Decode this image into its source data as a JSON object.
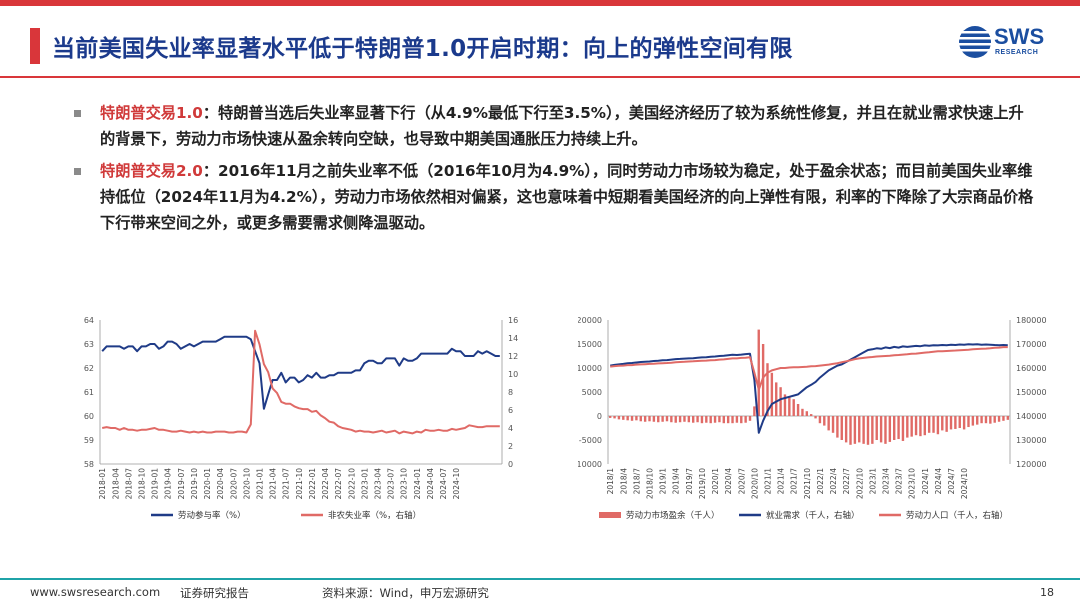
{
  "colors": {
    "brand_red": "#d9363a",
    "title_blue": "#1b3a8c",
    "teal_rule": "#1fa3a8",
    "series_blue": "#1f3b87",
    "series_red": "#e06a66"
  },
  "header": {
    "title": "当前美国失业率显著水平低于特朗普1.0开启时期：向上的弹性空间有限",
    "logo_text": "SWS",
    "logo_sub": "RESEARCH",
    "logo_icon": "sws-globe-icon"
  },
  "bullets": [
    {
      "lead": "特朗普交易1.0",
      "text": "：特朗普当选后失业率显著下行（从4.9%最低下行至3.5%），美国经济经历了较为系统性修复，并且在就业需求快速上升的背景下，劳动力市场快速从盈余转向空缺，也导致中期美国通胀压力持续上升。"
    },
    {
      "lead": "特朗普交易2.0",
      "text": "：2016年11月之前失业率不低（2016年10月为4.9%），同时劳动力市场较为稳定，处于盈余状态；而目前美国失业率维持低位（2024年11月为4.2%），劳动力市场依然相对偏紧，这也意味着中短期看美国经济的向上弹性有限，利率的下降除了大宗商品价格下行带来空间之外，或更多需要需求侧降温驱动。"
    }
  ],
  "footer": {
    "website": "www.swsresearch.com",
    "report_type": "证券研究报告",
    "source": "资料来源：Wind，申万宏源研究",
    "page": "18"
  },
  "chart_data": [
    {
      "type": "line",
      "x_ticks": [
        "2018-01",
        "2018-04",
        "2018-07",
        "2018-10",
        "2019-01",
        "2019-04",
        "2019-07",
        "2019-10",
        "2020-01",
        "2020-04",
        "2020-07",
        "2020-10",
        "2021-01",
        "2021-04",
        "2021-07",
        "2021-10",
        "2022-01",
        "2022-04",
        "2022-07",
        "2022-10",
        "2023-01",
        "2023-04",
        "2023-07",
        "2023-10",
        "2024-01",
        "2024-04",
        "2024-07",
        "2024-10"
      ],
      "ylim": [
        58,
        64
      ],
      "yticks": [
        58,
        59,
        60,
        61,
        62,
        63,
        64
      ],
      "y2lim": [
        0,
        16
      ],
      "y2ticks": [
        0,
        2,
        4,
        6,
        8,
        10,
        12,
        14,
        16
      ],
      "legend_position": "bottom",
      "series": [
        {
          "name": "劳动参与率（%）",
          "axis": "left",
          "color": "#1f3b87",
          "values": [
            62.7,
            62.9,
            62.9,
            62.9,
            62.9,
            62.8,
            62.9,
            62.9,
            62.7,
            62.9,
            62.9,
            63.0,
            63.0,
            62.8,
            62.9,
            63.1,
            63.1,
            63.0,
            62.8,
            62.9,
            63.0,
            62.9,
            63.0,
            63.1,
            63.1,
            63.1,
            63.1,
            63.2,
            63.3,
            63.3,
            63.3,
            63.3,
            63.3,
            63.3,
            63.2,
            62.7,
            62.2,
            60.3,
            60.9,
            61.5,
            61.5,
            61.8,
            61.4,
            61.6,
            61.6,
            61.4,
            61.5,
            61.7,
            61.6,
            61.8,
            61.6,
            61.6,
            61.7,
            61.7,
            61.8,
            61.8,
            61.8,
            61.8,
            61.9,
            61.9,
            62.2,
            62.3,
            62.3,
            62.2,
            62.2,
            62.4,
            62.4,
            62.4,
            62.1,
            62.4,
            62.3,
            62.3,
            62.4,
            62.6,
            62.6,
            62.6,
            62.6,
            62.6,
            62.6,
            62.6,
            62.8,
            62.7,
            62.7,
            62.5,
            62.5,
            62.5,
            62.7,
            62.6,
            62.7,
            62.6,
            62.5,
            62.5
          ]
        },
        {
          "name": "非农失业率（%，右轴）",
          "axis": "right",
          "color": "#e06a66",
          "values": [
            4.0,
            4.1,
            4.0,
            4.0,
            3.8,
            4.0,
            3.8,
            3.8,
            3.7,
            3.8,
            3.8,
            3.9,
            4.0,
            3.8,
            3.8,
            3.7,
            3.6,
            3.6,
            3.7,
            3.6,
            3.5,
            3.6,
            3.5,
            3.6,
            3.5,
            3.5,
            3.6,
            3.6,
            3.6,
            3.5,
            3.5,
            3.6,
            3.6,
            3.5,
            4.4,
            14.8,
            13.3,
            11.1,
            10.2,
            8.4,
            7.9,
            6.9,
            6.7,
            6.7,
            6.4,
            6.2,
            6.1,
            6.1,
            5.8,
            5.9,
            5.4,
            5.1,
            4.7,
            4.6,
            4.2,
            4.0,
            3.9,
            3.8,
            3.6,
            3.7,
            3.6,
            3.6,
            3.5,
            3.6,
            3.7,
            3.5,
            3.6,
            3.7,
            3.4,
            3.6,
            3.5,
            3.4,
            3.6,
            3.5,
            3.8,
            3.7,
            3.7,
            3.8,
            3.7,
            3.7,
            3.9,
            3.8,
            3.9,
            4.0,
            4.3,
            4.2,
            4.1,
            4.1,
            4.2,
            4.2,
            4.2,
            4.2
          ]
        }
      ]
    },
    {
      "type": "bar",
      "x_ticks": [
        "2018/1",
        "2018/4",
        "2018/7",
        "2018/10",
        "2019/1",
        "2019/4",
        "2019/7",
        "2019/10",
        "2020/1",
        "2020/4",
        "2020/7",
        "2020/10",
        "2021/1",
        "2021/4",
        "2021/7",
        "2021/10",
        "2022/1",
        "2022/4",
        "2022/7",
        "2022/10",
        "2023/1",
        "2023/4",
        "2023/7",
        "2023/10",
        "2024/1",
        "2024/4",
        "2024/7",
        "2024/10"
      ],
      "ylim": [
        -10000,
        20000
      ],
      "yticks": [
        -10000,
        -5000,
        0,
        5000,
        10000,
        15000,
        20000
      ],
      "y2lim": [
        120000,
        180000
      ],
      "y2ticks": [
        120000,
        130000,
        140000,
        150000,
        160000,
        170000,
        180000
      ],
      "legend_position": "bottom",
      "series": [
        {
          "name": "劳动力市场盈余（千人）",
          "axis": "left",
          "kind": "bar",
          "color": "#e06a66",
          "values": [
            -400,
            -500,
            -700,
            -800,
            -900,
            -1000,
            -900,
            -1100,
            -1200,
            -1100,
            -1200,
            -1300,
            -1200,
            -1100,
            -1300,
            -1400,
            -1300,
            -1200,
            -1300,
            -1400,
            -1300,
            -1500,
            -1400,
            -1500,
            -1400,
            -1300,
            -1500,
            -1500,
            -1500,
            -1400,
            -1500,
            -1400,
            -1000,
            2000,
            18000,
            15000,
            11000,
            9000,
            7000,
            6000,
            4500,
            4000,
            3500,
            2500,
            1500,
            1000,
            400,
            -500,
            -1500,
            -2000,
            -3000,
            -3500,
            -4500,
            -5000,
            -5500,
            -6000,
            -5800,
            -5500,
            -5800,
            -6000,
            -5800,
            -5000,
            -5500,
            -5800,
            -5400,
            -5000,
            -4800,
            -5200,
            -4500,
            -4300,
            -4000,
            -4200,
            -4000,
            -3500,
            -3500,
            -3800,
            -3000,
            -3300,
            -2800,
            -2700,
            -2500,
            -2800,
            -2300,
            -2000,
            -1800,
            -1500,
            -1500,
            -1600,
            -1400,
            -1200,
            -1000,
            -800
          ]
        },
        {
          "name": "就业需求（千人，右轴）",
          "axis": "right",
          "kind": "line",
          "color": "#1f3b87",
          "values": [
            161000,
            161300,
            161500,
            161700,
            162000,
            162100,
            162300,
            162500,
            162600,
            162700,
            162900,
            163000,
            163200,
            163300,
            163500,
            163700,
            163800,
            163900,
            164000,
            164100,
            164300,
            164400,
            164500,
            164700,
            164800,
            165000,
            165100,
            165300,
            165500,
            165400,
            165600,
            165800,
            165900,
            155000,
            133000,
            138000,
            142000,
            145000,
            146000,
            147000,
            147500,
            148000,
            148500,
            149000,
            150500,
            152000,
            153000,
            154200,
            156000,
            157500,
            159000,
            160000,
            161000,
            161500,
            162500,
            163500,
            164500,
            165500,
            166500,
            167500,
            167800,
            168200,
            168000,
            168600,
            168300,
            168800,
            168500,
            169000,
            168800,
            169000,
            169200,
            169100,
            169400,
            169300,
            169500,
            169400,
            169600,
            169500,
            169700,
            169600,
            169800,
            169700,
            169900,
            169800,
            169900,
            169700,
            169800,
            169700,
            169600,
            169500,
            169600,
            169500
          ]
        },
        {
          "name": "劳动力人口（千人，右轴）",
          "axis": "right",
          "kind": "line",
          "color": "#e06a66",
          "values": [
            160600,
            160800,
            160900,
            161000,
            161200,
            161200,
            161400,
            161500,
            161600,
            161700,
            161800,
            161900,
            162000,
            162100,
            162200,
            162400,
            162500,
            162600,
            162700,
            162800,
            162900,
            163000,
            163100,
            163200,
            163300,
            163500,
            163600,
            163800,
            164000,
            164000,
            164200,
            164300,
            164500,
            158000,
            151000,
            156000,
            158000,
            159000,
            159500,
            160000,
            160000,
            160200,
            160300,
            160300,
            160400,
            160500,
            160700,
            160800,
            161000,
            161200,
            161400,
            161700,
            162000,
            162400,
            162800,
            163200,
            163700,
            164000,
            164200,
            164400,
            164600,
            164800,
            164900,
            165000,
            165100,
            165300,
            165400,
            165600,
            165700,
            165900,
            166000,
            166200,
            166400,
            166600,
            166800,
            167000,
            167000,
            167100,
            167200,
            167300,
            167400,
            167500,
            167600,
            167800,
            167900,
            168000,
            168100,
            168200,
            168400,
            168500,
            168700,
            168700
          ]
        }
      ]
    }
  ]
}
